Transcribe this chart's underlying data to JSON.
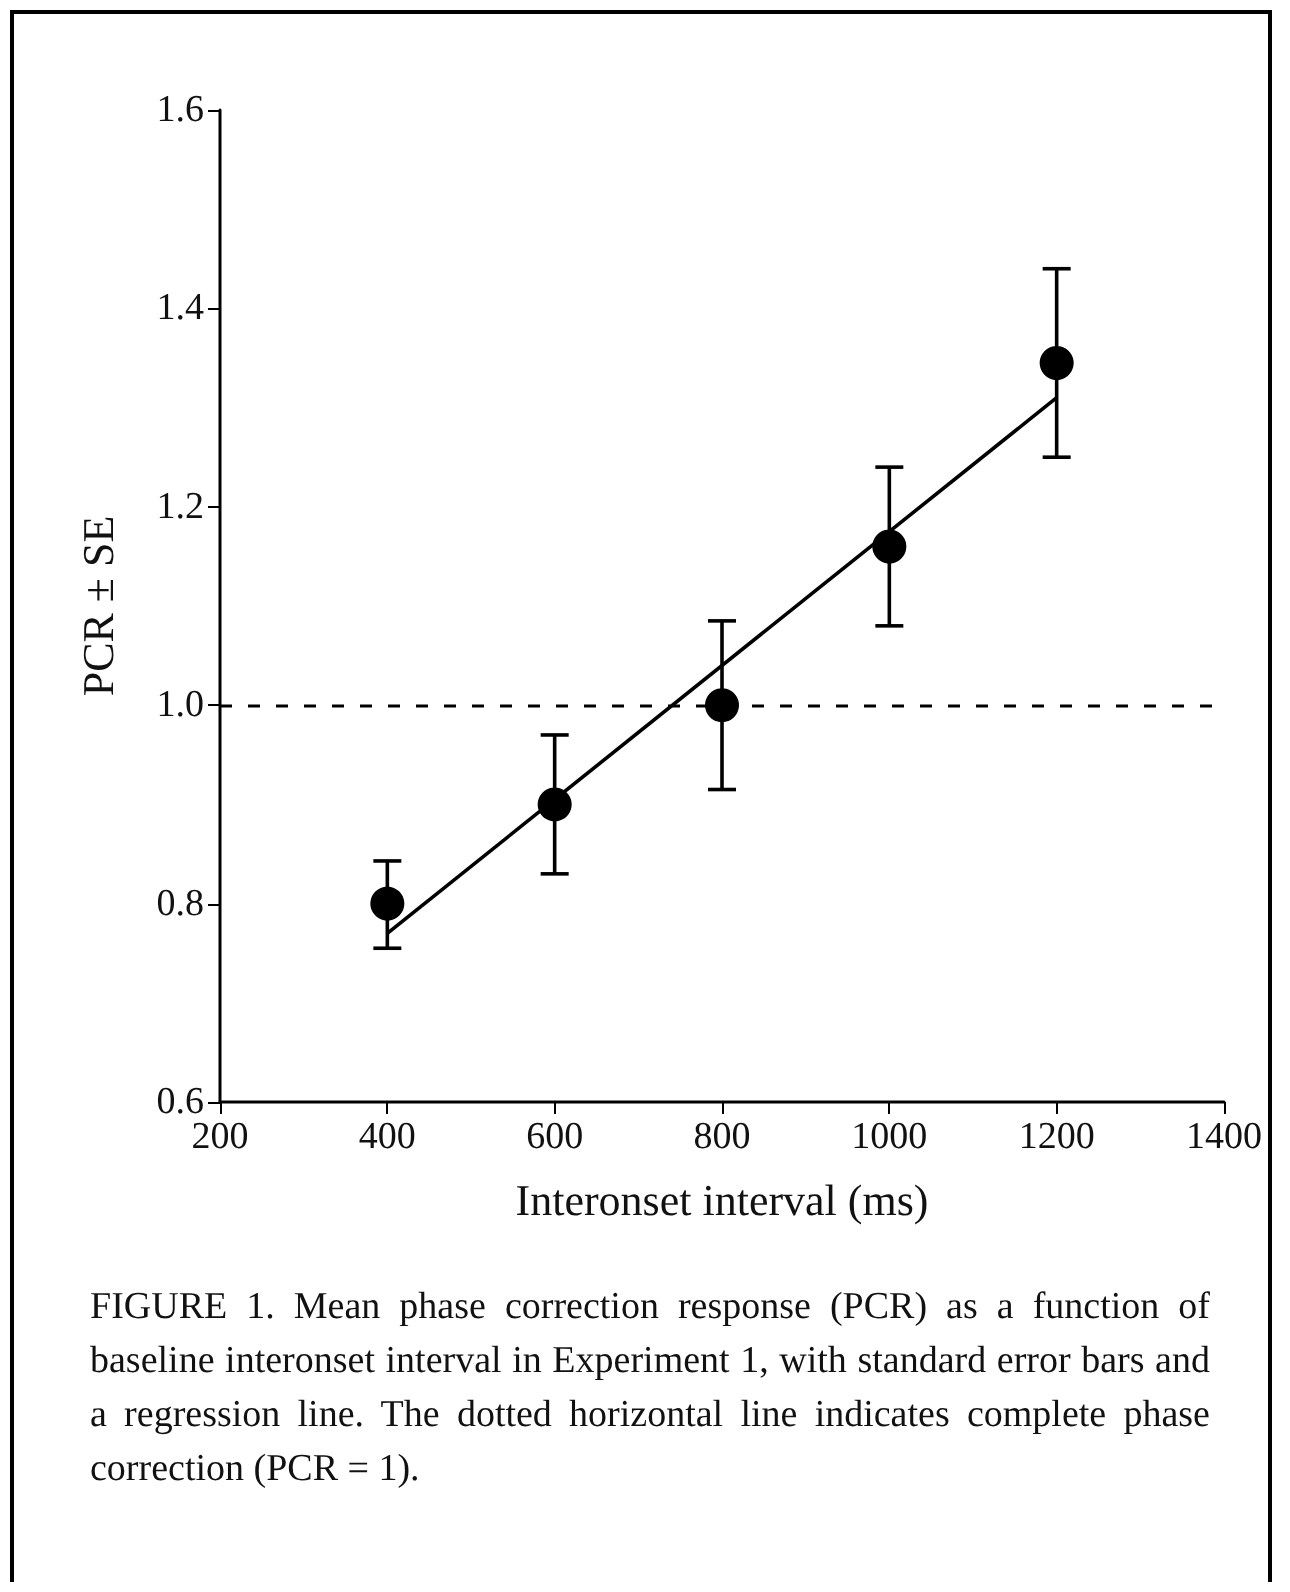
{
  "chart_data": {
    "type": "scatter",
    "xlabel": "Interonset interval (ms)",
    "ylabel": "PCR ± SE",
    "x": [
      400,
      600,
      800,
      1000,
      1200
    ],
    "series": [
      {
        "color": "#000000",
        "values": [
          0.8,
          0.9,
          1.0,
          1.16,
          1.345
        ],
        "errors": [
          [
            0.755,
            0.843
          ],
          [
            0.83,
            0.97
          ],
          [
            0.915,
            1.085
          ],
          [
            1.08,
            1.24
          ],
          [
            1.25,
            1.44
          ]
        ],
        "marker": "circle"
      },
      {
        "type": "line",
        "color": "#000000",
        "x": [
          400,
          1200
        ],
        "values": [
          0.77,
          1.31
        ],
        "marker": "none",
        "line_style": "solid"
      }
    ],
    "xlim": [
      200,
      1400
    ],
    "xticks": [
      200,
      400,
      600,
      800,
      1000,
      1200,
      1400
    ],
    "ylim": [
      0.6,
      1.6
    ],
    "yticks": [
      0.6,
      0.8,
      {
        "value": 1.0,
        "label": "1.0"
      },
      1.2,
      1.4,
      1.6
    ],
    "ref_lines": [
      {
        "axis": "y",
        "value": 1.0,
        "color": "#000000",
        "line_style": "dashed"
      }
    ],
    "grid": false,
    "annotations": [
      "FIGURE 1. Mean phase correction response (PCR) as a function of baseline interonset interval in Experiment 1, with standard error bars and a regression line. The dotted horizontal line indicates complete phase correction (PCR = 1)."
    ]
  }
}
